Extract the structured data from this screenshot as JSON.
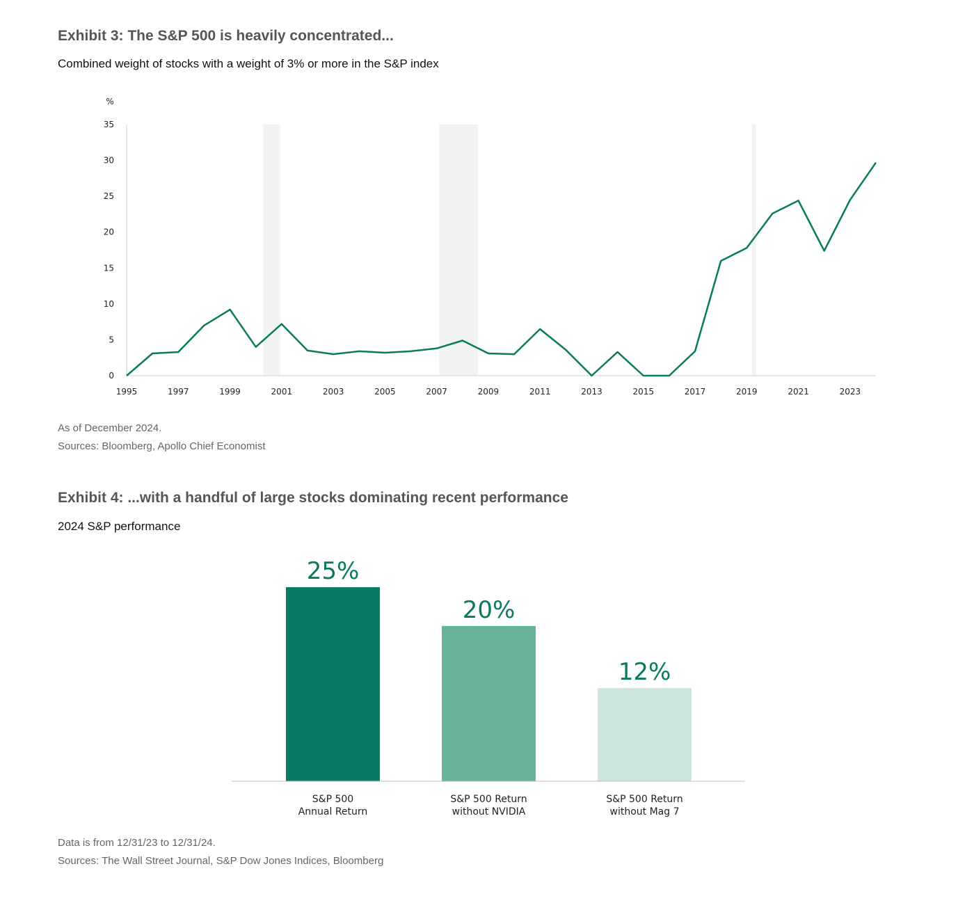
{
  "exhibit3": {
    "title": "Exhibit 3: The S&P 500 is heavily concentrated...",
    "subtitle": "Combined weight of stocks with a weight of 3% or more in the S&P index",
    "note1": "As of December 2024.",
    "note2": "Sources: Bloomberg, Apollo Chief Economist"
  },
  "exhibit4": {
    "title": "Exhibit 4: ...with a handful of large stocks dominating recent performance",
    "subtitle": "2024 S&P performance",
    "note1": "Data is from 12/31/23 to 12/31/24.",
    "note2": "Sources: The Wall Street Journal, S&P Dow Jones Indices, Bloomberg"
  },
  "chart_data": [
    {
      "type": "line",
      "title": "Exhibit 3: The S&P 500 is heavily concentrated...",
      "subtitle": "Combined weight of stocks with a weight of 3% or more in the S&P index",
      "ylabel": "%",
      "xlim": [
        1995,
        2024
      ],
      "ylim": [
        0,
        35
      ],
      "yticks": [
        0,
        5,
        10,
        15,
        20,
        25,
        30,
        35
      ],
      "xticks": [
        1995,
        1997,
        1999,
        2001,
        2003,
        2005,
        2007,
        2009,
        2011,
        2013,
        2015,
        2017,
        2019,
        2021,
        2023
      ],
      "x": [
        1995,
        1996,
        1997,
        1998,
        1999,
        2000,
        2001,
        2002,
        2003,
        2004,
        2005,
        2006,
        2007,
        2008,
        2009,
        2010,
        2011,
        2012,
        2013,
        2014,
        2015,
        2016,
        2017,
        2018,
        2019,
        2020,
        2021,
        2022,
        2023,
        2024
      ],
      "series": [
        {
          "color": "#0a7a5e",
          "values": [
            0,
            3.1,
            3.3,
            7.0,
            9.2,
            4.0,
            7.2,
            3.5,
            3.0,
            3.4,
            3.2,
            3.4,
            3.8,
            4.9,
            3.1,
            3.0,
            6.5,
            3.6,
            0,
            3.3,
            0,
            0,
            3.4,
            16.0,
            17.8,
            22.6,
            24.4,
            17.4,
            24.5,
            29.7
          ]
        }
      ],
      "shaded_periods": [
        [
          2000.3,
          2000.95
        ],
        [
          2007.1,
          2008.6
        ],
        [
          2019.2,
          2019.35
        ]
      ],
      "shade_color": "#f1f3f2",
      "grid": false
    },
    {
      "type": "bar",
      "title": "Exhibit 4: ...with a handful of large stocks dominating recent performance",
      "subtitle": "2024 S&P performance",
      "categories": [
        [
          "S&P 500",
          "Annual Return"
        ],
        [
          "S&P 500 Return",
          "without NVIDIA"
        ],
        [
          "S&P 500 Return",
          "without Mag 7"
        ]
      ],
      "values": [
        25,
        20,
        12
      ],
      "labels": [
        "25%",
        "20%",
        "12%"
      ],
      "colors": [
        "#087c63",
        "#67b29b",
        "#cce5df"
      ],
      "label_color": "#0a7a5e",
      "ylim": [
        0,
        25
      ],
      "grid": false
    }
  ]
}
